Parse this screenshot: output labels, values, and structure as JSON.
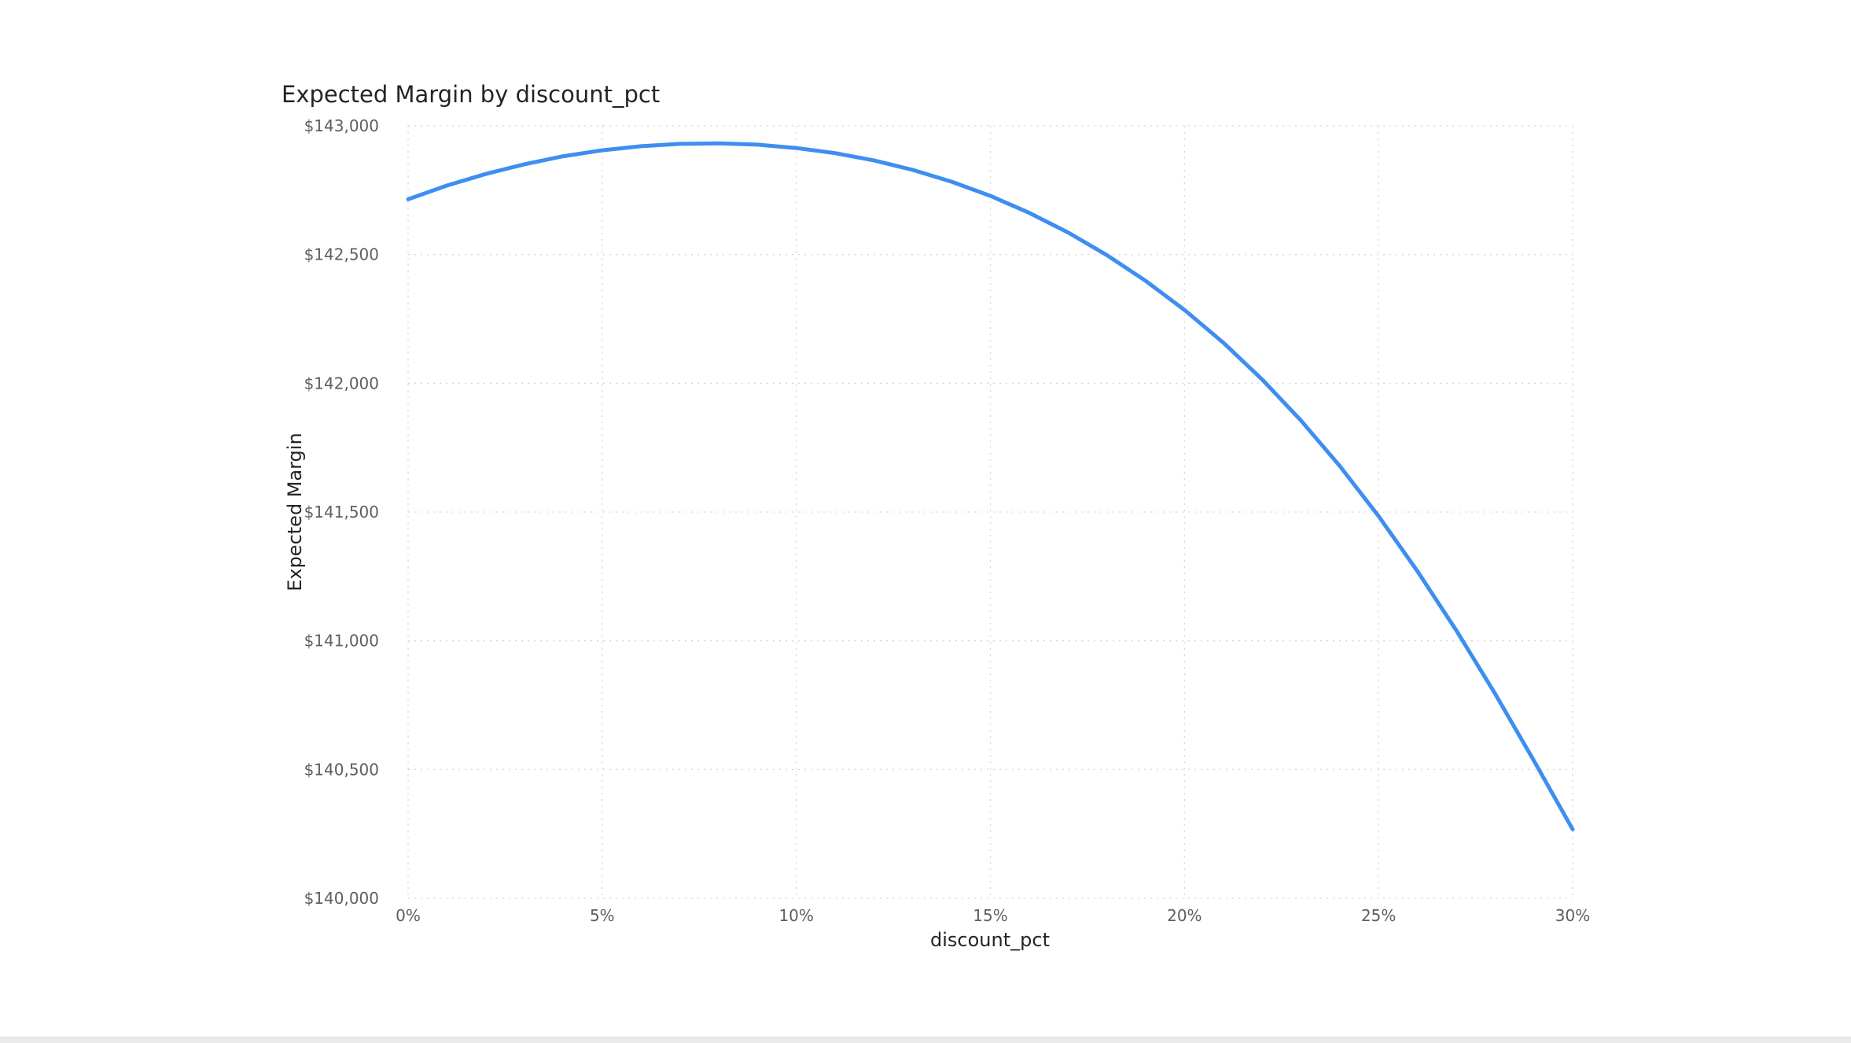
{
  "chart_data": {
    "type": "line",
    "title": "Expected Margin by discount_pct",
    "xlabel": "discount_pct",
    "ylabel": "Expected Margin",
    "x_ticks": [
      "0%",
      "5%",
      "10%",
      "15%",
      "20%",
      "25%",
      "30%"
    ],
    "y_ticks": [
      "$140,000",
      "$140,500",
      "$141,000",
      "$141,500",
      "$142,000",
      "$142,500",
      "$143,000"
    ],
    "xlim": [
      0,
      30
    ],
    "ylim": [
      140000,
      143000
    ],
    "grid": true,
    "legend": "none",
    "line_color": "#3e8ef0",
    "series": [
      {
        "x": [
          0,
          1,
          2,
          3,
          4,
          5,
          6,
          7,
          8,
          9,
          10,
          11,
          12,
          13,
          14,
          15,
          16,
          17,
          18,
          19,
          20,
          21,
          22,
          23,
          24,
          25,
          26,
          27,
          28,
          29,
          30
        ],
        "values": [
          142715,
          142768,
          142813,
          142851,
          142882,
          142905,
          142921,
          142930,
          142932,
          142927,
          142914,
          142894,
          142866,
          142829,
          142783,
          142728,
          142662,
          142586,
          142498,
          142398,
          142285,
          142158,
          142015,
          141856,
          141679,
          141484,
          141271,
          141041,
          140795,
          140535,
          140268
        ]
      }
    ]
  }
}
